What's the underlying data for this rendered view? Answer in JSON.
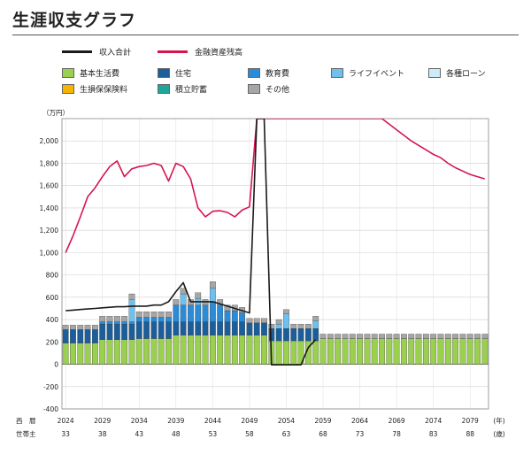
{
  "page": {
    "title": "生涯収支グラフ"
  },
  "legend": {
    "items": [
      {
        "key": "income",
        "label": "収入合計",
        "kind": "line",
        "color": "#1a1a1a"
      },
      {
        "key": "assets",
        "label": "金融資産残高",
        "kind": "line",
        "color": "#d6154f"
      },
      {
        "key": "basic",
        "label": "基本生活費",
        "kind": "box",
        "color": "#9bcf50"
      },
      {
        "key": "housing",
        "label": "住宅",
        "kind": "box",
        "color": "#1b5e9a"
      },
      {
        "key": "education",
        "label": "教育費",
        "kind": "box",
        "color": "#2a8bd8"
      },
      {
        "key": "events",
        "label": "ライフイベント",
        "kind": "box",
        "color": "#6fc0ec"
      },
      {
        "key": "loans",
        "label": "各種ローン",
        "kind": "box",
        "color": "#cdeaf8"
      },
      {
        "key": "insurance",
        "label": "生損保保険料",
        "kind": "box",
        "color": "#f4b400"
      },
      {
        "key": "savings",
        "label": "積立貯蓄",
        "kind": "box",
        "color": "#1fa69a"
      },
      {
        "key": "other",
        "label": "その他",
        "kind": "box",
        "color": "#a6a6a6"
      }
    ]
  },
  "chart_data": {
    "type": "bar",
    "unit_label": "（万円）",
    "ylim": [
      -400,
      2200
    ],
    "yticks": [
      -400,
      -200,
      0,
      200,
      400,
      600,
      800,
      1000,
      1200,
      1400,
      1600,
      1800,
      2000
    ],
    "ytick_labels": [
      "-400",
      "-200",
      "0",
      "200",
      "400",
      "600",
      "800",
      "1,000",
      "1,200",
      "1,400",
      "1,600",
      "1,800",
      "2,000"
    ],
    "years": [
      2024,
      2025,
      2026,
      2027,
      2028,
      2029,
      2030,
      2031,
      2032,
      2033,
      2034,
      2035,
      2036,
      2037,
      2038,
      2039,
      2040,
      2041,
      2042,
      2043,
      2044,
      2045,
      2046,
      2047,
      2048,
      2049,
      2050,
      2051,
      2052,
      2053,
      2054,
      2055,
      2056,
      2057,
      2058,
      2059,
      2060,
      2061,
      2062,
      2063,
      2064,
      2065,
      2066,
      2067,
      2068,
      2069,
      2070,
      2071,
      2072,
      2073,
      2074,
      2075,
      2076,
      2077,
      2078,
      2079,
      2080,
      2081
    ],
    "x_axis": {
      "row1_label": "西　暦",
      "row1_ticks": [
        "2024",
        "2029",
        "2034",
        "2039",
        "2044",
        "2049",
        "2054",
        "2059",
        "2064",
        "2069",
        "2074",
        "2079"
      ],
      "row1_unit": "(年)",
      "row2_label": "世帯主",
      "row2_ticks": [
        "33",
        "38",
        "43",
        "48",
        "53",
        "58",
        "63",
        "68",
        "73",
        "78",
        "83",
        "88"
      ],
      "row2_unit": "(歳)"
    },
    "series": [
      {
        "key": "basic",
        "name": "基本生活費",
        "values": [
          190,
          190,
          190,
          190,
          190,
          220,
          220,
          220,
          220,
          220,
          230,
          230,
          230,
          230,
          230,
          260,
          260,
          260,
          260,
          260,
          260,
          260,
          260,
          260,
          260,
          260,
          260,
          260,
          210,
          210,
          210,
          210,
          210,
          210,
          210,
          230,
          230,
          230,
          230,
          230,
          230,
          230,
          230,
          230,
          230,
          230,
          230,
          230,
          230,
          230,
          230,
          230,
          230,
          230,
          230,
          230,
          230,
          230
        ]
      },
      {
        "key": "housing",
        "name": "住宅",
        "values": [
          120,
          120,
          120,
          120,
          120,
          140,
          140,
          140,
          140,
          140,
          150,
          150,
          150,
          150,
          150,
          120,
          120,
          120,
          120,
          120,
          120,
          120,
          120,
          120,
          120,
          110,
          110,
          110,
          110,
          110,
          110,
          110,
          110,
          110,
          110,
          0,
          0,
          0,
          0,
          0,
          0,
          0,
          0,
          0,
          0,
          0,
          0,
          0,
          0,
          0,
          0,
          0,
          0,
          0,
          0,
          0,
          0,
          0
        ]
      },
      {
        "key": "education",
        "name": "教育費",
        "values": [
          0,
          0,
          0,
          0,
          0,
          20,
          20,
          20,
          20,
          20,
          40,
          40,
          40,
          40,
          40,
          150,
          150,
          150,
          150,
          150,
          180,
          150,
          100,
          100,
          80,
          0,
          0,
          0,
          0,
          0,
          0,
          0,
          0,
          0,
          0,
          0,
          0,
          0,
          0,
          0,
          0,
          0,
          0,
          0,
          0,
          0,
          0,
          0,
          0,
          0,
          0,
          0,
          0,
          0,
          0,
          0,
          0,
          0
        ]
      },
      {
        "key": "events",
        "name": "ライフイベント",
        "values": [
          0,
          0,
          0,
          0,
          0,
          0,
          0,
          0,
          0,
          200,
          0,
          0,
          0,
          0,
          0,
          0,
          100,
          0,
          60,
          0,
          120,
          0,
          0,
          0,
          0,
          0,
          0,
          0,
          0,
          40,
          130,
          0,
          0,
          0,
          70,
          0,
          0,
          0,
          0,
          0,
          0,
          0,
          0,
          0,
          0,
          0,
          0,
          0,
          0,
          0,
          0,
          0,
          0,
          0,
          0,
          0,
          0,
          0
        ]
      },
      {
        "key": "other",
        "name": "その他",
        "values": [
          40,
          40,
          40,
          40,
          40,
          50,
          50,
          50,
          50,
          50,
          50,
          50,
          50,
          50,
          50,
          50,
          50,
          50,
          50,
          50,
          60,
          50,
          50,
          50,
          50,
          40,
          40,
          40,
          40,
          40,
          40,
          40,
          40,
          40,
          40,
          40,
          40,
          40,
          40,
          40,
          40,
          40,
          40,
          40,
          40,
          40,
          40,
          40,
          40,
          40,
          40,
          40,
          40,
          40,
          40,
          40,
          40,
          40
        ]
      },
      {
        "key": "income",
        "name": "収入合計",
        "values": [
          480,
          485,
          490,
          495,
          500,
          505,
          510,
          515,
          515,
          520,
          520,
          520,
          530,
          530,
          560,
          650,
          730,
          560,
          560,
          560,
          560,
          540,
          520,
          500,
          480,
          460,
          2200,
          2200,
          -5,
          -5,
          -5,
          -5,
          -5,
          150,
          220,
          null,
          null,
          null,
          null,
          null,
          null,
          null,
          null,
          null,
          null,
          null,
          null,
          null,
          null,
          null,
          null,
          null,
          null,
          null,
          null,
          null,
          null,
          null
        ]
      },
      {
        "key": "assets",
        "name": "金融資産残高",
        "values": [
          1000,
          1150,
          1320,
          1500,
          1580,
          1680,
          1770,
          1820,
          1680,
          1750,
          1770,
          1780,
          1800,
          1780,
          1640,
          1800,
          1770,
          1660,
          1400,
          1320,
          1370,
          1375,
          1360,
          1320,
          1380,
          1410,
          2200,
          2200,
          2200,
          2200,
          2200,
          2200,
          2200,
          2200,
          2200,
          2200,
          2200,
          2200,
          2200,
          2200,
          2200,
          2200,
          2200,
          2200,
          2150,
          2100,
          2050,
          2000,
          1960,
          1920,
          1880,
          1850,
          1800,
          1760,
          1730,
          1700,
          1680,
          1660
        ]
      }
    ]
  }
}
